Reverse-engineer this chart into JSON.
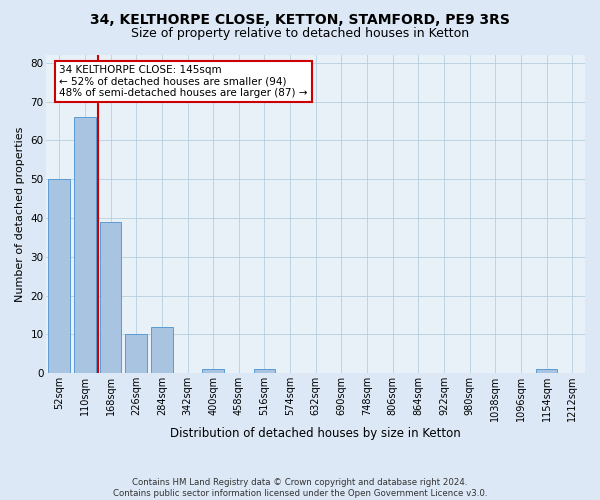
{
  "title_line1": "34, KELTHORPE CLOSE, KETTON, STAMFORD, PE9 3RS",
  "title_line2": "Size of property relative to detached houses in Ketton",
  "xlabel": "Distribution of detached houses by size in Ketton",
  "ylabel": "Number of detached properties",
  "footnote1": "Contains HM Land Registry data © Crown copyright and database right 2024.",
  "footnote2": "Contains public sector information licensed under the Open Government Licence v3.0.",
  "categories": [
    "52sqm",
    "110sqm",
    "168sqm",
    "226sqm",
    "284sqm",
    "342sqm",
    "400sqm",
    "458sqm",
    "516sqm",
    "574sqm",
    "632sqm",
    "690sqm",
    "748sqm",
    "806sqm",
    "864sqm",
    "922sqm",
    "980sqm",
    "1038sqm",
    "1096sqm",
    "1154sqm",
    "1212sqm"
  ],
  "values": [
    50,
    66,
    39,
    10,
    12,
    0,
    1,
    0,
    1,
    0,
    0,
    0,
    0,
    0,
    0,
    0,
    0,
    0,
    0,
    1,
    0
  ],
  "bar_color": "#a8c4e0",
  "bar_edge_color": "#5b9bd5",
  "vline_x": 1.5,
  "vline_color": "#cc0000",
  "annotation_text": "34 KELTHORPE CLOSE: 145sqm\n← 52% of detached houses are smaller (94)\n48% of semi-detached houses are larger (87) →",
  "ylim": [
    0,
    82
  ],
  "yticks": [
    0,
    10,
    20,
    30,
    40,
    50,
    60,
    70,
    80
  ],
  "bg_color": "#dce8f5",
  "plot_bg_color": "#e8f0f8",
  "grid_color": "#b8cfe0",
  "title1_fontsize": 10,
  "title2_fontsize": 9,
  "tick_fontsize": 7,
  "ylabel_fontsize": 8,
  "xlabel_fontsize": 8.5,
  "annot_fontsize": 7.5
}
